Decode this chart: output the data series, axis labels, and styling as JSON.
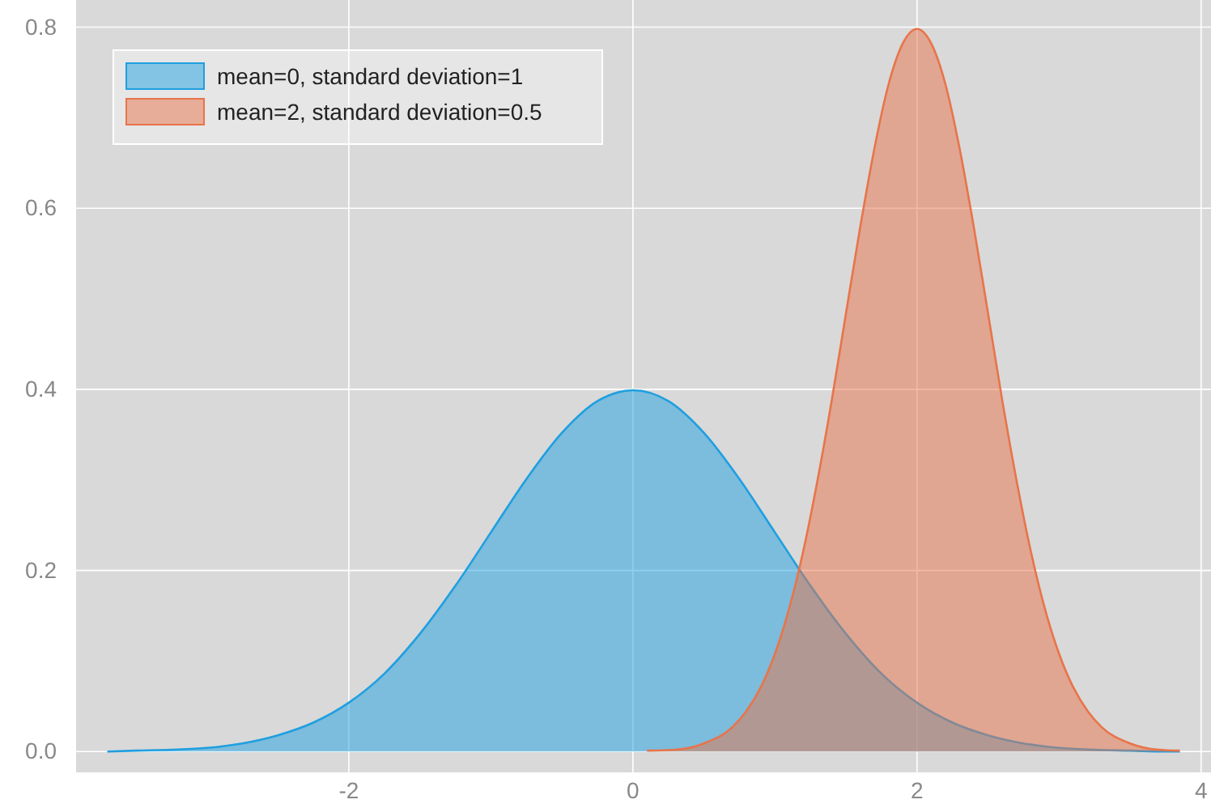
{
  "chart_data": {
    "type": "area",
    "xlim": [
      -3.92,
      4.07
    ],
    "ylim": [
      -0.023,
      0.83
    ],
    "xticks": [
      -2,
      0,
      2,
      4
    ],
    "yticks": [
      {
        "value": 0,
        "label": "0.0"
      },
      {
        "value": 0.2,
        "label": "0.2"
      },
      {
        "value": 0.4,
        "label": "0.4"
      },
      {
        "value": 0.6,
        "label": "0.6"
      },
      {
        "value": 0.8,
        "label": "0.8"
      }
    ],
    "grid": true,
    "legend": "top left",
    "series": [
      {
        "name": "mean=0, standard deviation=1",
        "color": "#1f9fe0",
        "x": [
          -3.7,
          -3.5,
          -3.25,
          -3,
          -2.75,
          -2.5,
          -2.25,
          -2,
          -1.75,
          -1.5,
          -1.25,
          -1,
          -0.75,
          -0.5,
          -0.25,
          0,
          0.25,
          0.5,
          0.75,
          1,
          1.25,
          1.5,
          1.75,
          2,
          2.25,
          2.5,
          2.75,
          3,
          3.25,
          3.5,
          3.75,
          3.85
        ],
        "values": [
          0.0,
          0.001,
          0.002,
          0.004,
          0.009,
          0.018,
          0.032,
          0.054,
          0.086,
          0.13,
          0.183,
          0.242,
          0.301,
          0.352,
          0.387,
          0.399,
          0.387,
          0.352,
          0.301,
          0.242,
          0.183,
          0.13,
          0.086,
          0.054,
          0.032,
          0.018,
          0.009,
          0.004,
          0.002,
          0.001,
          0.0,
          0.0
        ]
      },
      {
        "name": "mean=2, standard deviation=0.5",
        "color": "#e8744a",
        "x": [
          0.1,
          0.3,
          0.5,
          0.7,
          0.8,
          0.9,
          1.0,
          1.1,
          1.2,
          1.3,
          1.4,
          1.5,
          1.6,
          1.7,
          1.8,
          1.9,
          2.0,
          2.1,
          2.2,
          2.3,
          2.4,
          2.5,
          2.6,
          2.7,
          2.8,
          2.9,
          3.0,
          3.1,
          3.2,
          3.3,
          3.5,
          3.7,
          3.85
        ],
        "values": [
          0.001,
          0.002,
          0.009,
          0.027,
          0.045,
          0.071,
          0.108,
          0.158,
          0.222,
          0.3,
          0.388,
          0.484,
          0.579,
          0.666,
          0.737,
          0.782,
          0.798,
          0.782,
          0.737,
          0.666,
          0.579,
          0.484,
          0.388,
          0.3,
          0.222,
          0.158,
          0.108,
          0.071,
          0.045,
          0.027,
          0.009,
          0.002,
          0.001
        ]
      }
    ]
  }
}
